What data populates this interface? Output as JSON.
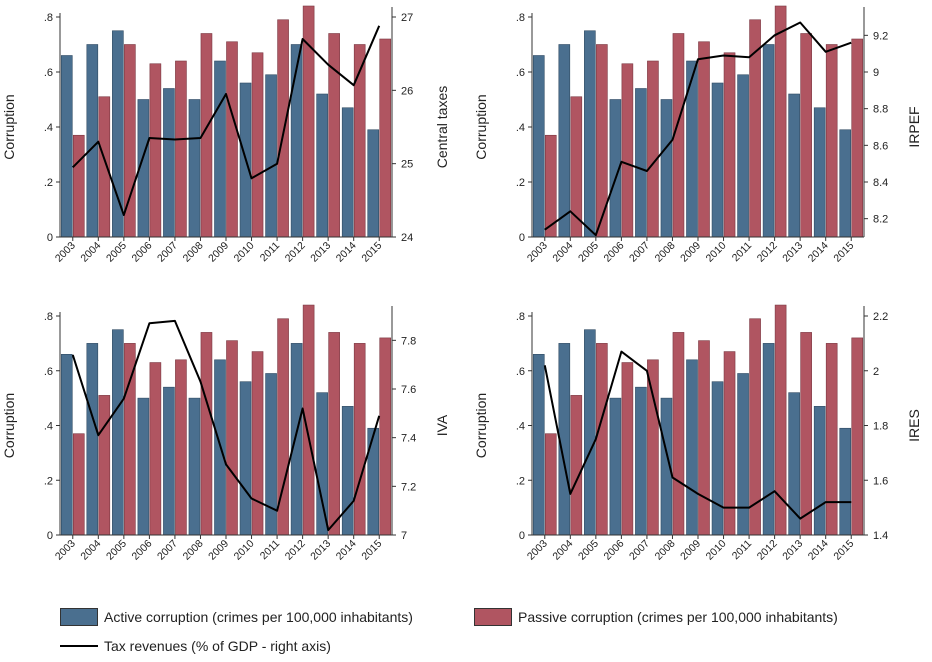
{
  "colors": {
    "active": "#4a6f8f",
    "passive": "#b05561",
    "line": "#000000"
  },
  "legend": {
    "active": "Active corruption (crimes per 100,000 inhabitants)",
    "passive": "Passive corruption (crimes per 100,000 inhabitants)",
    "line": "Tax revenues (% of GDP - right axis)"
  },
  "chart_data": [
    {
      "type": "bar",
      "title": "",
      "categories": [
        "2003",
        "2004",
        "2005",
        "2006",
        "2007",
        "2008",
        "2009",
        "2010",
        "2011",
        "2012",
        "2013",
        "2014",
        "2015"
      ],
      "series": [
        {
          "name": "Active corruption (crimes per 100,000 inhabitants)",
          "values": [
            0.66,
            0.7,
            0.75,
            0.5,
            0.54,
            0.5,
            0.64,
            0.56,
            0.59,
            0.7,
            0.52,
            0.47,
            0.39
          ]
        },
        {
          "name": "Passive corruption (crimes per 100,000 inhabitants)",
          "values": [
            0.37,
            0.51,
            0.7,
            0.63,
            0.64,
            0.74,
            0.71,
            0.67,
            0.79,
            0.84,
            0.74,
            0.7,
            0.72
          ]
        }
      ],
      "ylabel": "Corruption",
      "ylim": [
        0,
        0.8
      ],
      "yticks": [
        0,
        0.2,
        0.4,
        0.6,
        0.8
      ],
      "ytick_labels": [
        "0",
        ".2",
        ".4",
        ".6",
        ".8"
      ],
      "line_series": {
        "name": "Tax revenues (% of GDP - right axis)",
        "values": [
          24.95,
          25.3,
          24.3,
          25.35,
          25.33,
          25.35,
          25.95,
          24.8,
          25.0,
          26.7,
          26.35,
          26.07,
          26.88
        ]
      },
      "y2label": "Central taxes",
      "y2lim": [
        24,
        27
      ],
      "y2ticks": [
        24,
        25,
        26,
        27
      ],
      "y2tick_labels": [
        "24",
        "25",
        "26",
        "27"
      ]
    },
    {
      "type": "bar",
      "title": "",
      "categories": [
        "2003",
        "2004",
        "2005",
        "2006",
        "2007",
        "2008",
        "2009",
        "2010",
        "2011",
        "2012",
        "2013",
        "2014",
        "2015"
      ],
      "series": [
        {
          "name": "Active corruption (crimes per 100,000 inhabitants)",
          "values": [
            0.66,
            0.7,
            0.75,
            0.5,
            0.54,
            0.5,
            0.64,
            0.56,
            0.59,
            0.7,
            0.52,
            0.47,
            0.39
          ]
        },
        {
          "name": "Passive corruption (crimes per 100,000 inhabitants)",
          "values": [
            0.37,
            0.51,
            0.7,
            0.63,
            0.64,
            0.74,
            0.71,
            0.67,
            0.79,
            0.84,
            0.74,
            0.7,
            0.72
          ]
        }
      ],
      "ylabel": "Corruption",
      "ylim": [
        0,
        0.8
      ],
      "yticks": [
        0,
        0.2,
        0.4,
        0.6,
        0.8
      ],
      "ytick_labels": [
        "0",
        ".2",
        ".4",
        ".6",
        ".8"
      ],
      "line_series": {
        "name": "Tax revenues (% of GDP - right axis)",
        "values": [
          8.14,
          8.24,
          8.11,
          8.51,
          8.46,
          8.63,
          9.07,
          9.09,
          9.08,
          9.2,
          9.27,
          9.11,
          9.16
        ]
      },
      "y2label": "IRPEF",
      "y2lim": [
        8.1,
        9.3
      ],
      "y2ticks": [
        8.2,
        8.4,
        8.6,
        8.8,
        9,
        9.2
      ],
      "y2tick_labels": [
        "8.2",
        "8.4",
        "8.6",
        "8.8",
        "9",
        "9.2"
      ]
    },
    {
      "type": "bar",
      "title": "",
      "categories": [
        "2003",
        "2004",
        "2005",
        "2006",
        "2007",
        "2008",
        "2009",
        "2010",
        "2011",
        "2012",
        "2013",
        "2014",
        "2015"
      ],
      "series": [
        {
          "name": "Active corruption (crimes per 100,000 inhabitants)",
          "values": [
            0.66,
            0.7,
            0.75,
            0.5,
            0.54,
            0.5,
            0.64,
            0.56,
            0.59,
            0.7,
            0.52,
            0.47,
            0.39
          ]
        },
        {
          "name": "Passive corruption (crimes per 100,000 inhabitants)",
          "values": [
            0.37,
            0.51,
            0.7,
            0.63,
            0.64,
            0.74,
            0.71,
            0.67,
            0.79,
            0.84,
            0.74,
            0.7,
            0.72
          ]
        }
      ],
      "ylabel": "Corruption",
      "ylim": [
        0,
        0.8
      ],
      "yticks": [
        0,
        0.2,
        0.4,
        0.6,
        0.8
      ],
      "ytick_labels": [
        "0",
        ".2",
        ".4",
        ".6",
        ".8"
      ],
      "line_series": {
        "name": "Tax revenues (% of GDP - right axis)",
        "values": [
          7.74,
          7.41,
          7.56,
          7.87,
          7.88,
          7.63,
          7.29,
          7.15,
          7.1,
          7.52,
          7.02,
          7.14,
          7.49
        ]
      },
      "y2label": "IVA",
      "y2lim": [
        7,
        7.9
      ],
      "y2ticks": [
        7,
        7.2,
        7.4,
        7.6,
        7.8
      ],
      "y2tick_labels": [
        "7",
        "7.2",
        "7.4",
        "7.6",
        "7.8"
      ]
    },
    {
      "type": "bar",
      "title": "",
      "categories": [
        "2003",
        "2004",
        "2005",
        "2006",
        "2007",
        "2008",
        "2009",
        "2010",
        "2011",
        "2012",
        "2013",
        "2014",
        "2015"
      ],
      "series": [
        {
          "name": "Active corruption (crimes per 100,000 inhabitants)",
          "values": [
            0.66,
            0.7,
            0.75,
            0.5,
            0.54,
            0.5,
            0.64,
            0.56,
            0.59,
            0.7,
            0.52,
            0.47,
            0.39
          ]
        },
        {
          "name": "Passive corruption (crimes per 100,000 inhabitants)",
          "values": [
            0.37,
            0.51,
            0.7,
            0.63,
            0.64,
            0.74,
            0.71,
            0.67,
            0.79,
            0.84,
            0.74,
            0.7,
            0.72
          ]
        }
      ],
      "ylabel": "Corruption",
      "ylim": [
        0,
        0.8
      ],
      "yticks": [
        0,
        0.2,
        0.4,
        0.6,
        0.8
      ],
      "ytick_labels": [
        "0",
        ".2",
        ".4",
        ".6",
        ".8"
      ],
      "line_series": {
        "name": "Tax revenues (% of GDP - right axis)",
        "values": [
          2.02,
          1.55,
          1.75,
          2.07,
          2.0,
          1.61,
          1.55,
          1.5,
          1.5,
          1.56,
          1.46,
          1.52,
          1.52
        ]
      },
      "y2label": "IRES",
      "y2lim": [
        1.4,
        2.2
      ],
      "y2ticks": [
        1.4,
        1.6,
        1.8,
        2.0,
        2.2
      ],
      "y2tick_labels": [
        "1.4",
        "1.6",
        "1.8",
        "2",
        "2.2"
      ]
    }
  ]
}
